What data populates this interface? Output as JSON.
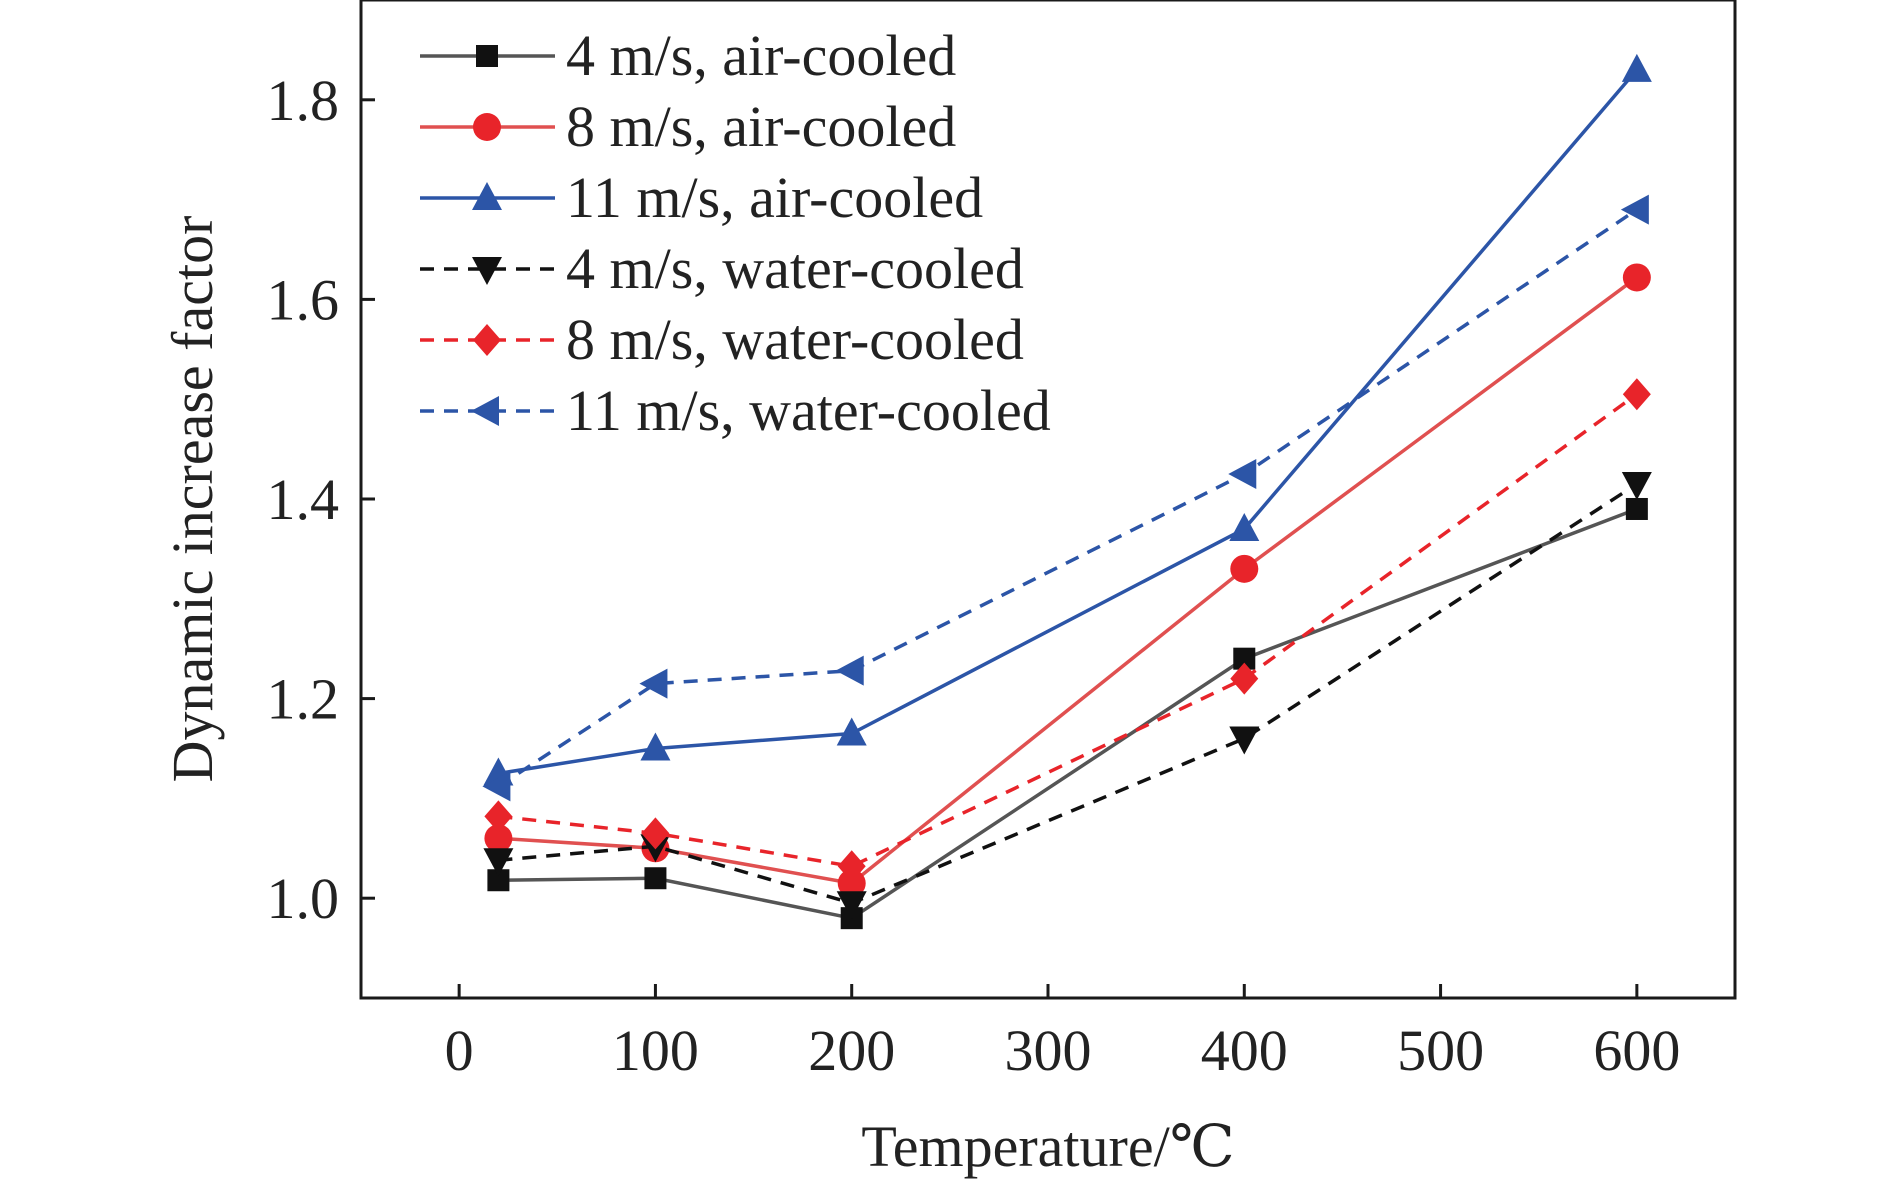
{
  "chart_data": {
    "type": "line",
    "title": "",
    "xlabel": "Temperature/℃",
    "ylabel": "Dynamic increase factor",
    "xlim": [
      -50,
      650
    ],
    "ylim": [
      0.9,
      1.9
    ],
    "xticks": [
      0,
      100,
      200,
      300,
      400,
      500,
      600
    ],
    "yticks": [
      1.0,
      1.2,
      1.4,
      1.6,
      1.8
    ],
    "xtick_labels": [
      "0",
      "100",
      "200",
      "300",
      "400",
      "500",
      "600"
    ],
    "ytick_labels": [
      "1.0",
      "1.2",
      "1.4",
      "1.6",
      "1.8"
    ],
    "grid": false,
    "legend_position": "top-left",
    "series": [
      {
        "name": "4 m/s, air-cooled",
        "color": "#555555",
        "marker_color": "#111111",
        "dash": "solid",
        "marker": "square",
        "x": [
          20,
          100,
          200,
          400,
          600
        ],
        "y": [
          1.018,
          1.02,
          0.98,
          1.24,
          1.39
        ]
      },
      {
        "name": "8 m/s, air-cooled",
        "color": "#e05050",
        "marker_color": "#e8242a",
        "dash": "solid",
        "marker": "circle",
        "x": [
          20,
          100,
          200,
          400,
          600
        ],
        "y": [
          1.06,
          1.05,
          1.015,
          1.33,
          1.622
        ]
      },
      {
        "name": "11 m/s, air-cooled",
        "color": "#2c55a7",
        "marker_color": "#2c55a7",
        "dash": "solid",
        "marker": "triangle-up",
        "x": [
          20,
          100,
          200,
          400,
          600
        ],
        "y": [
          1.125,
          1.15,
          1.165,
          1.37,
          1.83
        ]
      },
      {
        "name": "4 m/s, water-cooled",
        "color": "#111111",
        "marker_color": "#111111",
        "dash": "dashed",
        "marker": "triangle-down",
        "x": [
          20,
          100,
          200,
          400,
          600
        ],
        "y": [
          1.038,
          1.052,
          0.995,
          1.16,
          1.415
        ]
      },
      {
        "name": "8 m/s, water-cooled",
        "color": "#e8242a",
        "marker_color": "#e8242a",
        "dash": "dashed",
        "marker": "diamond",
        "x": [
          20,
          100,
          200,
          400,
          600
        ],
        "y": [
          1.082,
          1.065,
          1.032,
          1.22,
          1.505
        ]
      },
      {
        "name": "11 m/s, water-cooled",
        "color": "#2c55a7",
        "marker_color": "#2c55a7",
        "dash": "dashed",
        "marker": "triangle-left",
        "x": [
          20,
          100,
          200,
          400,
          600
        ],
        "y": [
          1.112,
          1.215,
          1.228,
          1.425,
          1.69
        ]
      }
    ]
  }
}
